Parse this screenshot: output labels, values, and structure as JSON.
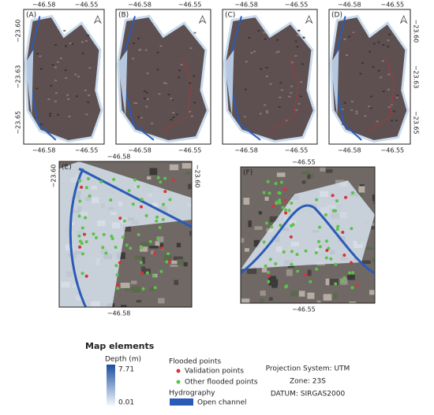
{
  "panels": [
    {
      "label": "(A)",
      "top": [
        "−46.58",
        "−46.55"
      ],
      "bottom": [
        "−46.58",
        "−46.55"
      ],
      "left": [
        "−23.60",
        "−23.63",
        "−23.65"
      ]
    },
    {
      "label": "(B)",
      "top": [
        "−46.58",
        "−46.55"
      ],
      "bottom": [
        "−46.58",
        "−46.55"
      ]
    },
    {
      "label": "(C)",
      "top": [
        "−46.58",
        "−46.55"
      ],
      "bottom": [
        "−46.58",
        "−46.55"
      ]
    },
    {
      "label": "(D)",
      "top": [
        "−46.58",
        "−46.55"
      ],
      "bottom": [
        "−46.58",
        "−46.55"
      ],
      "right": [
        "−23.60",
        "−23.63",
        "−23.65"
      ]
    },
    {
      "label": "(E)",
      "top": [
        "−46.58"
      ],
      "bottom": [
        "−46.58"
      ],
      "left": [
        "−23.60"
      ],
      "right": [
        "−23.60"
      ]
    },
    {
      "label": "(F)",
      "top": [
        "−46.55"
      ],
      "bottom": [
        "−46.55"
      ]
    }
  ],
  "legend": {
    "title": "Map elements",
    "depth_title": "Depth (m)",
    "depth_max": "7.71",
    "depth_min": "0.01",
    "points_title": "Flooded points",
    "validation": "Validation points",
    "other": "Other flooded points",
    "hydro_title": "Hydrography",
    "channel": "Open channel",
    "projection": "Projection System: UTM",
    "zone": "Zone: 23S",
    "datum": "DATUM: SIRGAS2000"
  }
}
